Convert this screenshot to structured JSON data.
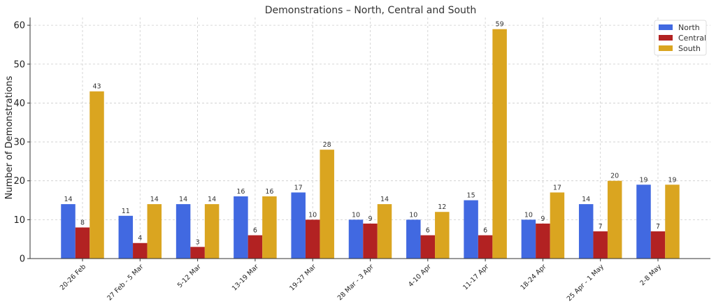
{
  "chart_data": {
    "type": "bar",
    "title": "Demonstrations – North, Central and South",
    "xlabel": "",
    "ylabel": "Number of Demonstrations",
    "categories": [
      "20-26 Feb",
      "27 Feb - 5 Mar",
      "5-12 Mar",
      "13-19 Mar",
      "19-27 Mar",
      "28 Mar - 3 Apr",
      "4-10 Apr",
      "11-17 Apr",
      "18-24 Apr",
      "25 Apr - 1 May",
      "2-8 May"
    ],
    "series": [
      {
        "name": "North",
        "color": "#4169E1",
        "values": [
          14,
          11,
          14,
          16,
          17,
          10,
          10,
          15,
          10,
          14,
          19
        ]
      },
      {
        "name": "Central",
        "color": "#B22222",
        "values": [
          8,
          4,
          3,
          6,
          10,
          9,
          6,
          6,
          9,
          7,
          7
        ]
      },
      {
        "name": "South",
        "color": "#DAA520",
        "values": [
          43,
          14,
          14,
          16,
          28,
          14,
          12,
          59,
          17,
          20,
          19
        ]
      }
    ],
    "ylim": [
      0,
      62
    ],
    "yticks": [
      0,
      10,
      20,
      30,
      40,
      50,
      60
    ],
    "grid": true,
    "legend_position": "top-right"
  }
}
